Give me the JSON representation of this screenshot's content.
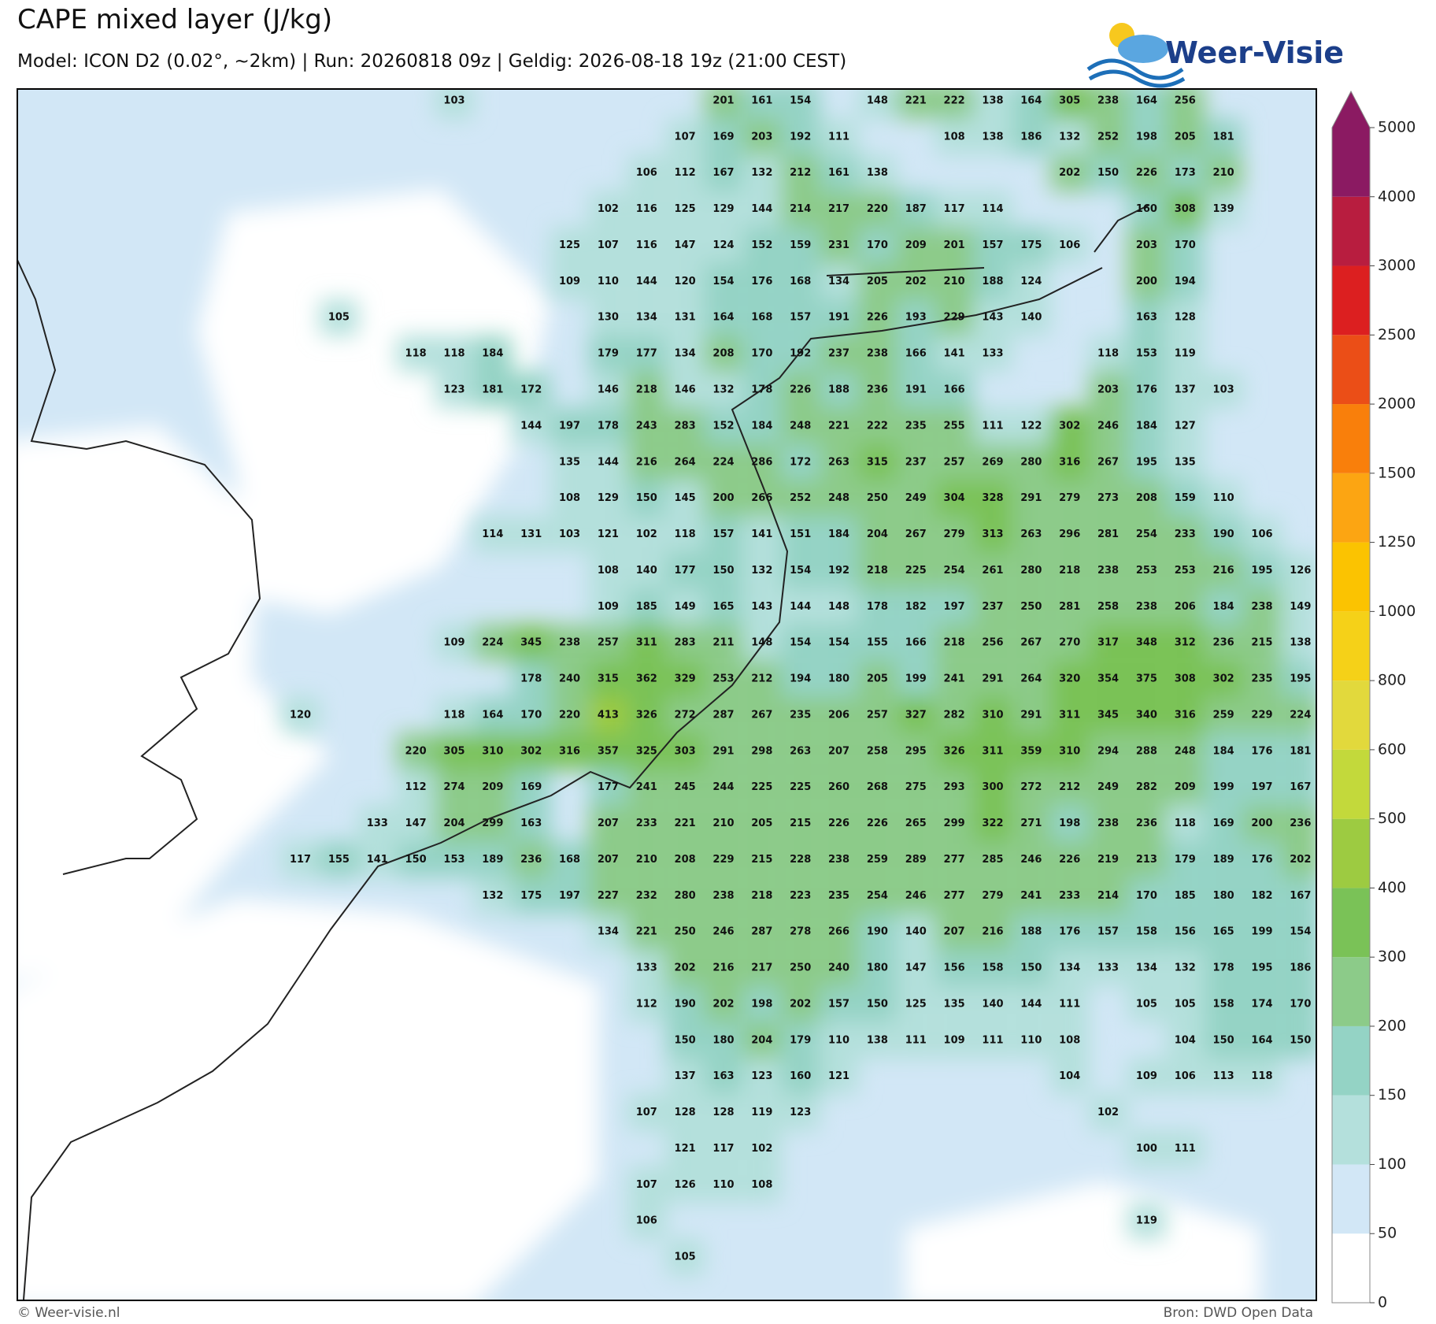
{
  "map": {
    "title": "CAPE mixed layer (J/kg)",
    "subtitle": "Model: ICON D2 (0.02°, ~2km)  |  Run: 20260818 09z  |  Geldig: 2026-08-18 19z (21:00 CEST)",
    "logo": "Weer-Visie",
    "copyright": "© Weer-visie.nl",
    "source": "Bron: DWD Open Data",
    "colorbar": {
      "ticks": [
        0,
        50,
        100,
        150,
        200,
        300,
        400,
        500,
        600,
        800,
        1000,
        1250,
        1500,
        2000,
        2500,
        3000,
        4000,
        5000
      ],
      "colors": [
        "#ffffff",
        "#d2e7f6",
        "#b4e0dc",
        "#94d3c5",
        "#8ccb89",
        "#7ac257",
        "#9dcb41",
        "#c3d93b",
        "#e2d93c",
        "#f5d118",
        "#fbc301",
        "#fca512",
        "#f97f0b",
        "#eb4e17",
        "#dc1f20",
        "#b81d3f",
        "#8b1a62"
      ],
      "extend_color": "#8b1a62"
    },
    "labels": [
      [
        null,
        null,
        null,
        null,
        103,
        null,
        null,
        null,
        null,
        null,
        null,
        201,
        161,
        154,
        null,
        148,
        221,
        222,
        138,
        164,
        305,
        238,
        164,
        256,
        null,
        null,
        null
      ],
      [
        null,
        null,
        null,
        null,
        null,
        null,
        null,
        null,
        null,
        null,
        107,
        169,
        203,
        192,
        111,
        null,
        null,
        108,
        138,
        186,
        132,
        252,
        198,
        205,
        181,
        null,
        null
      ],
      [
        null,
        null,
        null,
        null,
        null,
        null,
        null,
        null,
        null,
        106,
        112,
        167,
        132,
        212,
        161,
        138,
        null,
        null,
        null,
        null,
        202,
        150,
        226,
        173,
        210,
        null,
        null
      ],
      [
        null,
        null,
        null,
        null,
        null,
        null,
        null,
        null,
        102,
        116,
        125,
        129,
        144,
        214,
        217,
        220,
        187,
        117,
        114,
        null,
        null,
        null,
        160,
        308,
        139,
        null,
        null
      ],
      [
        null,
        null,
        null,
        null,
        null,
        null,
        null,
        125,
        107,
        116,
        147,
        124,
        152,
        159,
        231,
        170,
        209,
        201,
        157,
        175,
        106,
        null,
        203,
        170,
        null,
        null,
        null
      ],
      [
        null,
        null,
        null,
        null,
        null,
        null,
        null,
        109,
        110,
        144,
        120,
        154,
        176,
        168,
        134,
        205,
        202,
        210,
        188,
        124,
        null,
        null,
        200,
        194,
        null,
        null,
        null
      ],
      [
        null,
        105,
        null,
        null,
        null,
        null,
        null,
        null,
        130,
        134,
        131,
        164,
        168,
        157,
        191,
        226,
        193,
        229,
        143,
        140,
        null,
        null,
        163,
        128,
        null,
        null,
        null
      ],
      [
        null,
        null,
        null,
        118,
        118,
        184,
        null,
        null,
        179,
        177,
        134,
        208,
        170,
        192,
        237,
        238,
        166,
        141,
        133,
        null,
        null,
        118,
        153,
        119,
        null,
        null,
        null
      ],
      [
        null,
        null,
        null,
        null,
        123,
        181,
        172,
        null,
        146,
        218,
        146,
        132,
        178,
        226,
        188,
        236,
        191,
        166,
        null,
        null,
        null,
        203,
        176,
        137,
        103,
        null,
        null
      ],
      [
        null,
        null,
        null,
        null,
        null,
        null,
        144,
        197,
        178,
        243,
        283,
        152,
        184,
        248,
        221,
        222,
        235,
        255,
        111,
        122,
        302,
        246,
        184,
        127,
        null,
        null,
        null
      ],
      [
        null,
        null,
        null,
        null,
        null,
        null,
        null,
        135,
        144,
        216,
        264,
        224,
        286,
        172,
        263,
        315,
        237,
        257,
        269,
        280,
        316,
        267,
        195,
        135,
        null,
        null,
        null
      ],
      [
        null,
        null,
        null,
        null,
        null,
        null,
        null,
        108,
        129,
        150,
        145,
        200,
        266,
        252,
        248,
        250,
        249,
        304,
        328,
        291,
        279,
        273,
        208,
        159,
        110,
        null,
        null
      ],
      [
        null,
        null,
        null,
        null,
        null,
        114,
        131,
        103,
        121,
        102,
        118,
        157,
        141,
        151,
        184,
        204,
        267,
        279,
        313,
        263,
        296,
        281,
        254,
        233,
        190,
        106,
        null
      ],
      [
        null,
        null,
        null,
        null,
        null,
        null,
        null,
        null,
        108,
        140,
        177,
        150,
        132,
        154,
        192,
        218,
        225,
        254,
        261,
        280,
        218,
        238,
        253,
        253,
        216,
        195,
        126
      ],
      [
        null,
        null,
        null,
        null,
        null,
        null,
        null,
        null,
        109,
        185,
        149,
        165,
        143,
        144,
        148,
        178,
        182,
        197,
        237,
        250,
        281,
        258,
        238,
        206,
        184,
        238,
        149
      ],
      [
        null,
        null,
        null,
        null,
        109,
        224,
        345,
        238,
        257,
        311,
        283,
        211,
        148,
        154,
        154,
        155,
        166,
        218,
        256,
        267,
        270,
        317,
        348,
        312,
        236,
        215,
        138
      ],
      [
        null,
        null,
        null,
        null,
        null,
        null,
        178,
        240,
        315,
        362,
        329,
        253,
        212,
        194,
        180,
        205,
        199,
        241,
        291,
        264,
        320,
        354,
        375,
        308,
        302,
        235,
        195
      ],
      [
        120,
        null,
        null,
        null,
        118,
        164,
        170,
        220,
        413,
        326,
        272,
        287,
        267,
        235,
        206,
        257,
        327,
        282,
        310,
        291,
        311,
        345,
        340,
        316,
        259,
        229,
        224
      ],
      [
        null,
        null,
        null,
        220,
        305,
        310,
        302,
        316,
        357,
        325,
        303,
        291,
        298,
        263,
        207,
        258,
        295,
        326,
        311,
        359,
        310,
        294,
        288,
        248,
        184,
        176,
        181
      ],
      [
        null,
        null,
        null,
        112,
        274,
        209,
        169,
        null,
        177,
        241,
        245,
        244,
        225,
        225,
        260,
        268,
        275,
        293,
        300,
        272,
        212,
        249,
        282,
        209,
        199,
        197,
        167
      ],
      [
        null,
        null,
        133,
        147,
        204,
        299,
        163,
        null,
        207,
        233,
        221,
        210,
        205,
        215,
        226,
        226,
        265,
        299,
        322,
        271,
        198,
        238,
        236,
        118,
        169,
        200,
        236
      ],
      [
        117,
        155,
        141,
        150,
        153,
        189,
        236,
        168,
        207,
        210,
        208,
        229,
        215,
        228,
        238,
        259,
        289,
        277,
        285,
        246,
        226,
        219,
        213,
        179,
        189,
        176,
        202
      ],
      [
        null,
        null,
        null,
        null,
        null,
        132,
        175,
        197,
        227,
        232,
        280,
        238,
        218,
        223,
        235,
        254,
        246,
        277,
        279,
        241,
        233,
        214,
        170,
        185,
        180,
        182,
        167
      ],
      [
        null,
        null,
        null,
        null,
        null,
        null,
        null,
        null,
        134,
        221,
        250,
        246,
        287,
        278,
        266,
        190,
        140,
        207,
        216,
        188,
        176,
        157,
        158,
        156,
        165,
        199,
        154
      ],
      [
        null,
        null,
        null,
        null,
        null,
        null,
        null,
        null,
        null,
        133,
        202,
        216,
        217,
        250,
        240,
        180,
        147,
        156,
        158,
        150,
        134,
        133,
        134,
        132,
        178,
        195,
        186
      ],
      [
        null,
        null,
        null,
        null,
        null,
        null,
        null,
        null,
        null,
        112,
        190,
        202,
        198,
        202,
        157,
        150,
        125,
        135,
        140,
        144,
        111,
        null,
        105,
        105,
        158,
        174,
        170
      ],
      [
        null,
        null,
        null,
        null,
        null,
        null,
        null,
        null,
        null,
        null,
        150,
        180,
        204,
        179,
        110,
        138,
        111,
        109,
        111,
        110,
        108,
        null,
        null,
        104,
        150,
        164,
        150
      ],
      [
        null,
        null,
        null,
        null,
        null,
        null,
        null,
        null,
        null,
        null,
        137,
        163,
        123,
        160,
        121,
        null,
        null,
        null,
        null,
        null,
        104,
        null,
        109,
        106,
        113,
        118,
        null
      ],
      [
        null,
        null,
        null,
        null,
        null,
        null,
        null,
        null,
        null,
        107,
        128,
        128,
        119,
        123,
        null,
        null,
        null,
        null,
        null,
        null,
        null,
        102,
        null,
        null,
        null,
        null,
        null
      ],
      [
        null,
        null,
        null,
        null,
        null,
        null,
        null,
        null,
        null,
        null,
        121,
        117,
        102,
        null,
        null,
        null,
        null,
        null,
        null,
        null,
        null,
        null,
        100,
        111,
        null,
        null,
        null
      ],
      [
        null,
        null,
        null,
        null,
        null,
        null,
        null,
        null,
        null,
        107,
        126,
        110,
        108,
        null,
        null,
        null,
        null,
        null,
        null,
        null,
        null,
        null,
        null,
        null,
        null,
        null,
        null
      ],
      [
        null,
        null,
        null,
        null,
        null,
        null,
        null,
        null,
        null,
        106,
        null,
        null,
        null,
        null,
        null,
        null,
        null,
        null,
        null,
        null,
        null,
        null,
        119,
        null,
        null,
        null,
        null
      ],
      [
        null,
        null,
        null,
        null,
        null,
        null,
        null,
        null,
        null,
        null,
        105,
        null,
        null,
        null,
        null,
        null,
        null,
        null,
        null,
        null,
        null,
        null,
        null,
        null,
        null,
        null,
        null
      ]
    ]
  }
}
